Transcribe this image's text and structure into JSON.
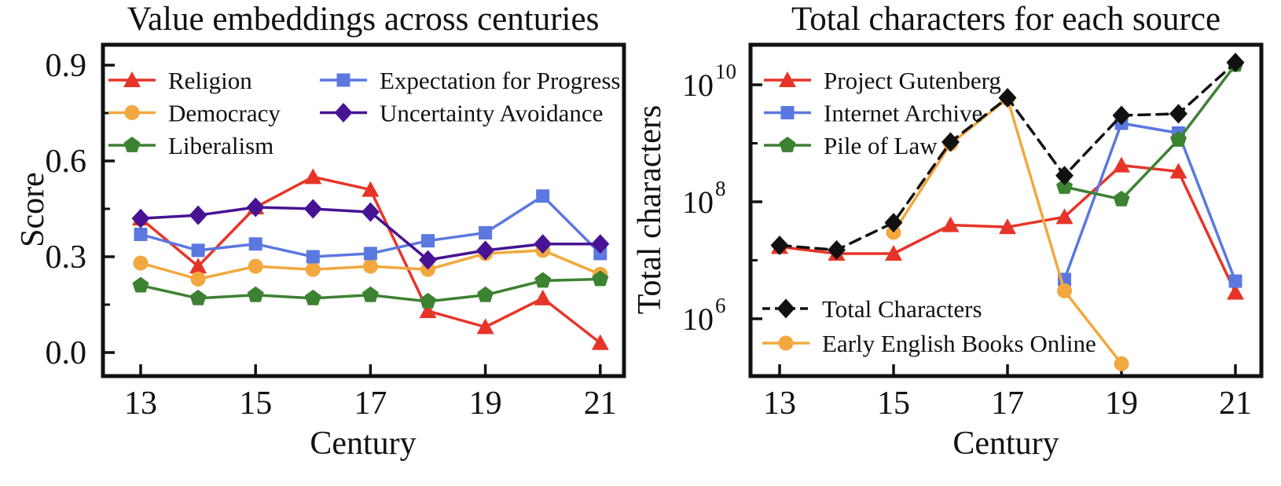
{
  "figure": {
    "background": "#ffffff",
    "text_color": "#111111",
    "description": "Two line charts side by side"
  },
  "chart_data": [
    {
      "type": "line",
      "title": "Value embeddings across centuries",
      "xlabel": "Century",
      "ylabel": "Score",
      "x": [
        13,
        14,
        15,
        16,
        17,
        18,
        19,
        20,
        21
      ],
      "xtick_values": [
        13,
        15,
        17,
        19,
        21
      ],
      "xtick_labels": [
        "13",
        "15",
        "17",
        "19",
        "21"
      ],
      "ytick_values": [
        0.0,
        0.3,
        0.6,
        0.9
      ],
      "ytick_labels": [
        "0.0",
        "0.3",
        "0.6",
        "0.9"
      ],
      "ytick_minor": [
        0.15,
        0.45,
        0.75
      ],
      "ylim": [
        -0.07,
        0.96
      ],
      "grid": false,
      "legend_position": "upper-left inside, two columns",
      "series": [
        {
          "name": "Religion",
          "marker": "triangle",
          "color": "#e73428",
          "dashed": false,
          "values": [
            0.42,
            0.27,
            0.455,
            0.55,
            0.51,
            0.13,
            0.08,
            0.17,
            0.03
          ]
        },
        {
          "name": "Democracy",
          "marker": "circle",
          "color": "#f2a83e",
          "dashed": false,
          "values": [
            0.28,
            0.23,
            0.27,
            0.26,
            0.27,
            0.26,
            0.31,
            0.32,
            0.245
          ]
        },
        {
          "name": "Liberalism",
          "marker": "pentagon",
          "color": "#3d8132",
          "dashed": false,
          "values": [
            0.21,
            0.17,
            0.18,
            0.17,
            0.18,
            0.16,
            0.18,
            0.225,
            0.23
          ]
        },
        {
          "name": "Expectation for Progress",
          "marker": "square",
          "color": "#5b78e0",
          "dashed": false,
          "values": [
            0.37,
            0.32,
            0.34,
            0.3,
            0.31,
            0.35,
            0.375,
            0.49,
            0.31
          ]
        },
        {
          "name": "Uncertainty Avoidance",
          "marker": "diamond",
          "color": "#471394",
          "dashed": false,
          "values": [
            0.42,
            0.43,
            0.455,
            0.45,
            0.44,
            0.29,
            0.32,
            0.34,
            0.34
          ]
        }
      ]
    },
    {
      "type": "line",
      "title": "Total characters for each source",
      "xlabel": "Century",
      "ylabel": "Total characters",
      "x": [
        13,
        14,
        15,
        16,
        17,
        18,
        19,
        20,
        21
      ],
      "xtick_values": [
        13,
        15,
        17,
        19,
        21
      ],
      "xtick_labels": [
        "13",
        "15",
        "17",
        "19",
        "21"
      ],
      "yscale": "log",
      "ytick_exponents": [
        6,
        8,
        10
      ],
      "ytick_minor_exponents": [
        7,
        9
      ],
      "ylim": [
        100000.0,
        50000000000.0
      ],
      "grid": false,
      "legend_position": "two groups: upper-left and lower-left inside",
      "series": [
        {
          "name": "Project Gutenberg",
          "marker": "triangle",
          "color": "#e73428",
          "dashed": false,
          "values": [
            17000000.0,
            13000000.0,
            13000000.0,
            40000000.0,
            37000000.0,
            55000000.0,
            420000000.0,
            330000000.0,
            2800000.0
          ]
        },
        {
          "name": "Internet Archive",
          "marker": "square",
          "color": "#5b78e0",
          "dashed": false,
          "values": [
            null,
            null,
            null,
            null,
            null,
            4700000.0,
            2200000000.0,
            1500000000.0,
            4400000.0
          ]
        },
        {
          "name": "Pile of Law",
          "marker": "pentagon",
          "color": "#3d8132",
          "dashed": false,
          "values": [
            null,
            null,
            null,
            null,
            null,
            180000000.0,
            110000000.0,
            1150000000.0,
            22000000000.0
          ]
        },
        {
          "name": "Total Characters",
          "marker": "diamond",
          "color": "#111111",
          "dashed": true,
          "values": [
            18000000.0,
            15000000.0,
            44000000.0,
            1050000000.0,
            6000000000.0,
            280000000.0,
            3000000000.0,
            3200000000.0,
            24000000000.0
          ]
        },
        {
          "name": "Early English Books Online",
          "marker": "circle",
          "color": "#f2a83e",
          "dashed": false,
          "values": [
            null,
            null,
            30000000.0,
            980000000.0,
            5800000000.0,
            3000000.0,
            170000.0,
            null,
            null
          ]
        }
      ]
    }
  ]
}
